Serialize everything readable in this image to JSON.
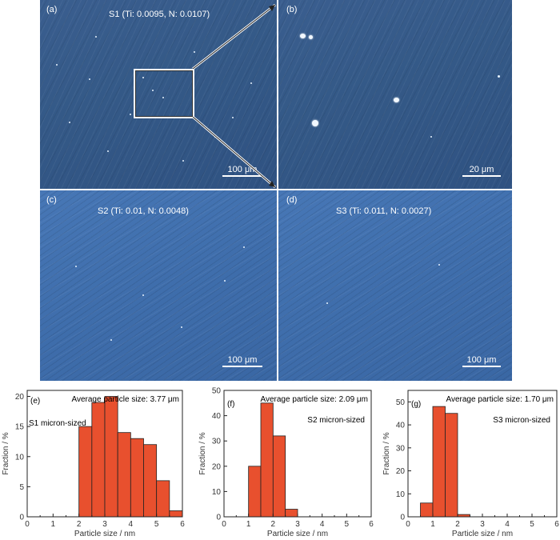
{
  "micrographs": [
    {
      "label": "(a)",
      "title": "S1 (Ti: 0.0095, N: 0.0107)",
      "scale": "100 μm"
    },
    {
      "label": "(b)",
      "title": "",
      "scale": "20 μm"
    },
    {
      "label": "(c)",
      "title": "S2 (Ti: 0.01, N: 0.0048)",
      "scale": "100 μm"
    },
    {
      "label": "(d)",
      "title": "S3 (Ti: 0.011, N: 0.0027)",
      "scale": "100 μm"
    }
  ],
  "chart_data": [
    {
      "type": "bar",
      "panel_label": "(e)",
      "annotation": "Average particle size: 3.77 μm",
      "series_label": "S1 micron-sized",
      "xlabel": "Particle size / nm",
      "ylabel": "Fraction / %",
      "xlim": [
        0,
        6
      ],
      "ylim": [
        0,
        21
      ],
      "x_ticks": [
        "0",
        "1",
        "2",
        "3",
        "4",
        "5",
        "6"
      ],
      "y_ticks": [
        "0",
        "5",
        "10",
        "15",
        "20"
      ],
      "bin_width": 0.5,
      "x": [
        2.25,
        2.75,
        3.25,
        3.75,
        4.25,
        4.75,
        5.25,
        5.75
      ],
      "values": [
        15,
        19,
        20,
        14,
        13,
        12,
        6,
        1
      ],
      "color": "#e8502e"
    },
    {
      "type": "bar",
      "panel_label": "(f)",
      "annotation": "Average particle size: 2.09 μm",
      "series_label": "S2 micron-sized",
      "xlabel": "Particle size / nm",
      "ylabel": "Fraction / %",
      "xlim": [
        0,
        6
      ],
      "ylim": [
        0,
        50
      ],
      "x_ticks": [
        "0",
        "1",
        "2",
        "3",
        "4",
        "5",
        "6"
      ],
      "y_ticks": [
        "0",
        "10",
        "20",
        "30",
        "40",
        "50"
      ],
      "bin_width": 0.5,
      "x": [
        1.25,
        1.75,
        2.25,
        2.75
      ],
      "values": [
        20,
        45,
        32,
        3
      ],
      "color": "#e8502e"
    },
    {
      "type": "bar",
      "panel_label": "(g)",
      "annotation": "Average particle size: 1.70 μm",
      "series_label": "S3 micron-sized",
      "xlabel": "Particle size / nm",
      "ylabel": "Fraction / %",
      "xlim": [
        0,
        6
      ],
      "ylim": [
        0,
        55
      ],
      "x_ticks": [
        "0",
        "1",
        "2",
        "3",
        "4",
        "5",
        "6"
      ],
      "y_ticks": [
        "0",
        "10",
        "20",
        "30",
        "40",
        "50"
      ],
      "bin_width": 0.5,
      "x": [
        0.75,
        1.25,
        1.75,
        2.25
      ],
      "values": [
        6,
        48,
        45,
        1
      ],
      "color": "#e8502e"
    }
  ]
}
